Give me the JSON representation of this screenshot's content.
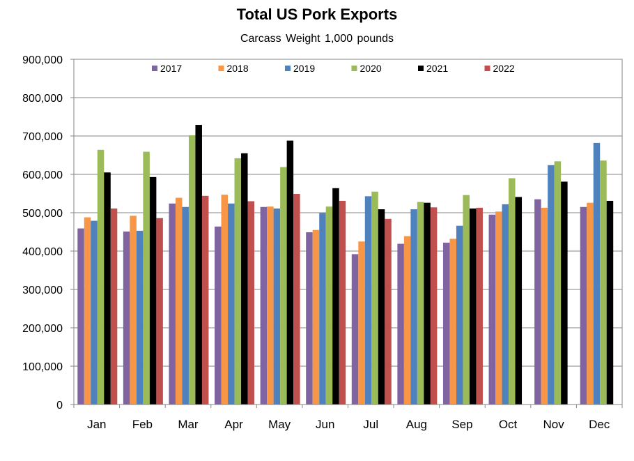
{
  "chart_data": {
    "type": "bar",
    "title": "Total US Pork Exports",
    "subtitle": "Carcass  Weight     1,000 pounds",
    "xlabel": "",
    "ylabel": "",
    "ylim": [
      0,
      900000
    ],
    "ytick_step": 100000,
    "ytick_labels": [
      "0",
      "100,000",
      "200,000",
      "300,000",
      "400,000",
      "500,000",
      "600,000",
      "700,000",
      "800,000",
      "900,000"
    ],
    "grid": true,
    "legend_position": "top",
    "categories": [
      "Jan",
      "Feb",
      "Mar",
      "Apr",
      "May",
      "Jun",
      "Jul",
      "Aug",
      "Sep",
      "Oct",
      "Nov",
      "Dec"
    ],
    "series": [
      {
        "name": "2017",
        "color": "#8064A2",
        "values": [
          459000,
          451000,
          524000,
          464000,
          515000,
          449000,
          392000,
          419000,
          422000,
          495000,
          535000,
          515000
        ]
      },
      {
        "name": "2018",
        "color": "#F79646",
        "values": [
          488000,
          492000,
          539000,
          547000,
          516000,
          455000,
          425000,
          439000,
          432000,
          503000,
          513000,
          526000
        ]
      },
      {
        "name": "2019",
        "color": "#4F81BD",
        "values": [
          479000,
          453000,
          515000,
          524000,
          511000,
          499000,
          543000,
          509000,
          466000,
          522000,
          624000,
          682000
        ]
      },
      {
        "name": "2020",
        "color": "#9BBB59",
        "values": [
          664000,
          659000,
          702000,
          642000,
          619000,
          516000,
          555000,
          528000,
          546000,
          590000,
          634000,
          636000
        ]
      },
      {
        "name": "2021",
        "color": "#000000",
        "values": [
          605000,
          593000,
          729000,
          655000,
          688000,
          564000,
          509000,
          526000,
          511000,
          541000,
          581000,
          531000
        ]
      },
      {
        "name": "2022",
        "color": "#C0504D",
        "values": [
          511000,
          486000,
          544000,
          530000,
          549000,
          531000,
          484000,
          514000,
          513000,
          null,
          null,
          null
        ]
      }
    ]
  }
}
